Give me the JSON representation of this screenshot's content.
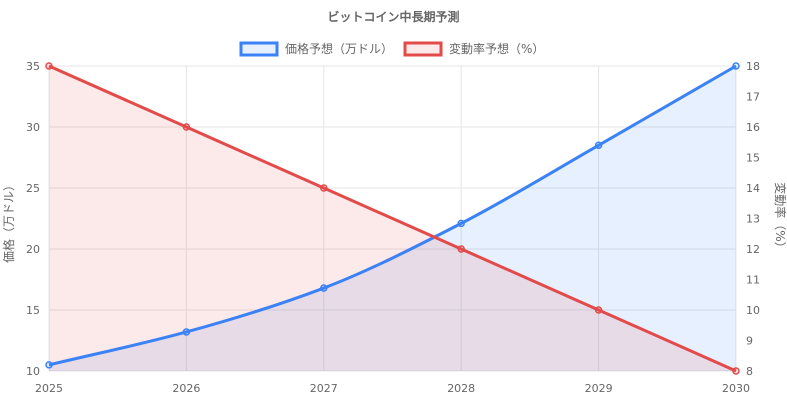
{
  "chart_data": {
    "type": "line",
    "title": "ビットコイン中長期予測",
    "categories": [
      "2025",
      "2026",
      "2027",
      "2028",
      "2029",
      "2030"
    ],
    "series": [
      {
        "name": "価格予想（万ドル）",
        "values": [
          10.5,
          13.2,
          16.8,
          22.1,
          28.5,
          35
        ],
        "axis": "left",
        "color": "#3b82f6",
        "fill": "rgba(59,130,246,0.12)"
      },
      {
        "name": "変動率予想（%）",
        "values": [
          18,
          16,
          14,
          12,
          10,
          8
        ],
        "axis": "right",
        "color": "#e34a4a",
        "fill": "rgba(227,74,74,0.12)"
      }
    ],
    "y_left": {
      "label": "価格（万ドル）",
      "min": 10,
      "max": 35,
      "ticks": [
        "10",
        "15",
        "20",
        "25",
        "30",
        "35"
      ]
    },
    "y_right": {
      "label": "変動率（%）",
      "min": 8,
      "max": 18,
      "ticks": [
        "8",
        "9",
        "10",
        "11",
        "12",
        "13",
        "14",
        "15",
        "16",
        "17",
        "18"
      ]
    },
    "grid": true,
    "legend": "top-center"
  }
}
